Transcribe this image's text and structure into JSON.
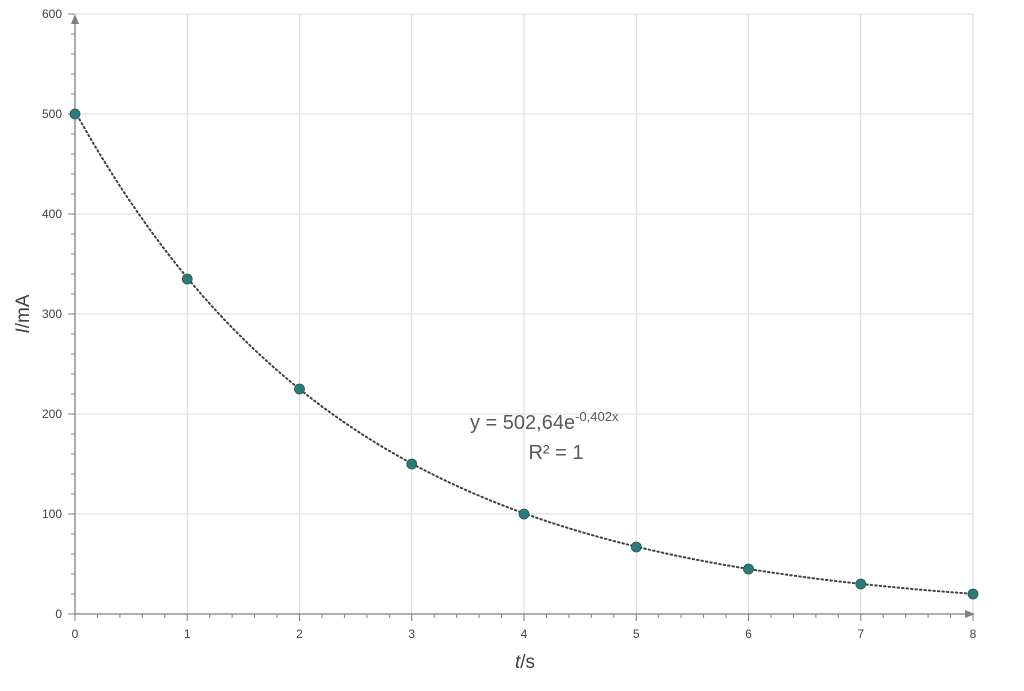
{
  "chart_data": {
    "type": "scatter",
    "xlabel": {
      "var": "t",
      "unit": "/s"
    },
    "ylabel": {
      "var": "I",
      "unit": "/mA"
    },
    "xlim": [
      0,
      8
    ],
    "ylim": [
      0,
      600
    ],
    "x_ticks": [
      0,
      1,
      2,
      3,
      4,
      5,
      6,
      7,
      8
    ],
    "y_ticks": [
      0,
      100,
      200,
      300,
      400,
      500,
      600
    ],
    "x_tick_labels": [
      "0",
      "1",
      "2",
      "3",
      "4",
      "5",
      "6",
      "7",
      "8"
    ],
    "y_tick_labels": [
      "0",
      "100",
      "200",
      "300",
      "400",
      "500",
      "600"
    ],
    "grid": true,
    "series": [
      {
        "x": [
          0,
          1,
          2,
          3,
          4,
          5,
          6,
          7,
          8
        ],
        "values": [
          500,
          335,
          225,
          150,
          100,
          67,
          45,
          30,
          20
        ],
        "color": "#2e7a7a"
      }
    ],
    "trendline": {
      "type": "exponential",
      "a": 502.64,
      "b": -0.402,
      "style": "dotted",
      "color": "#404040",
      "equation_main": "y = 502,64e",
      "equation_exp": "-0,402x",
      "r_squared": "R² = 1"
    }
  }
}
